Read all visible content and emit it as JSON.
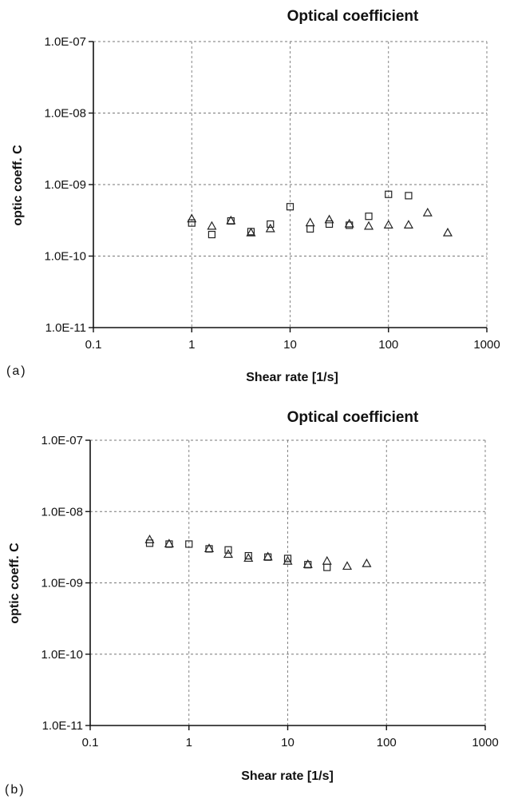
{
  "chart_data": [
    {
      "type": "scatter",
      "panel_label": "(a)",
      "title": "Optical coefficient",
      "xlabel": "Shear rate [1/s]",
      "ylabel": "optic coeff. C",
      "xscale": "log",
      "yscale": "log",
      "xlim": [
        0.1,
        1000
      ],
      "ylim": [
        1e-11,
        1e-07
      ],
      "x_tick_labels": [
        "0.1",
        "1",
        "10",
        "100",
        "1000"
      ],
      "y_tick_labels": [
        "1.0E-11",
        "1.0E-10",
        "1.0E-09",
        "1.0E-08",
        "1.0E-07"
      ],
      "grid": true,
      "legend": "none",
      "series": [
        {
          "marker": "square",
          "points": [
            [
              1.0,
              2.9e-10
            ],
            [
              1.6,
              2e-10
            ],
            [
              2.5,
              3.1e-10
            ],
            [
              4.0,
              2.2e-10
            ],
            [
              6.3,
              2.8e-10
            ],
            [
              10,
              4.9e-10
            ],
            [
              16,
              2.4e-10
            ],
            [
              25,
              2.8e-10
            ],
            [
              40,
              2.7e-10
            ],
            [
              63,
              3.6e-10
            ],
            [
              100,
              7.3e-10
            ],
            [
              160,
              7e-10
            ]
          ]
        },
        {
          "marker": "triangle",
          "points": [
            [
              1.0,
              3.3e-10
            ],
            [
              1.6,
              2.6e-10
            ],
            [
              2.5,
              3.1e-10
            ],
            [
              4.0,
              2.1e-10
            ],
            [
              6.3,
              2.4e-10
            ],
            [
              16,
              2.9e-10
            ],
            [
              25,
              3.2e-10
            ],
            [
              40,
              2.8e-10
            ],
            [
              63,
              2.6e-10
            ],
            [
              100,
              2.7e-10
            ],
            [
              160,
              2.7e-10
            ],
            [
              250,
              4e-10
            ],
            [
              400,
              2.1e-10
            ]
          ]
        }
      ]
    },
    {
      "type": "scatter",
      "panel_label": "(b)",
      "title": "Optical coefficient",
      "xlabel": "Shear rate [1/s]",
      "ylabel": "optic coeff. C",
      "xscale": "log",
      "yscale": "log",
      "xlim": [
        0.1,
        1000
      ],
      "ylim": [
        1e-11,
        1e-07
      ],
      "x_tick_labels": [
        "0.1",
        "1",
        "10",
        "100",
        "1000"
      ],
      "y_tick_labels": [
        "1.0E-11",
        "1.0E-10",
        "1.0E-09",
        "1.0E-08",
        "1.0E-07"
      ],
      "grid": true,
      "legend": "none",
      "series": [
        {
          "marker": "square",
          "points": [
            [
              0.4,
              3.6e-09
            ],
            [
              0.63,
              3.5e-09
            ],
            [
              1.0,
              3.5e-09
            ],
            [
              1.6,
              3e-09
            ],
            [
              2.5,
              2.9e-09
            ],
            [
              4.0,
              2.4e-09
            ],
            [
              6.3,
              2.3e-09
            ],
            [
              10,
              2.2e-09
            ],
            [
              16,
              1.8e-09
            ],
            [
              25,
              1.65e-09
            ]
          ]
        },
        {
          "marker": "triangle",
          "points": [
            [
              0.4,
              4e-09
            ],
            [
              0.63,
              3.5e-09
            ],
            [
              1.6,
              3e-09
            ],
            [
              2.5,
              2.5e-09
            ],
            [
              4.0,
              2.2e-09
            ],
            [
              6.3,
              2.3e-09
            ],
            [
              10,
              2e-09
            ],
            [
              16,
              1.8e-09
            ],
            [
              25,
              2e-09
            ],
            [
              40,
              1.7e-09
            ],
            [
              63,
              1.85e-09
            ]
          ]
        }
      ]
    }
  ]
}
